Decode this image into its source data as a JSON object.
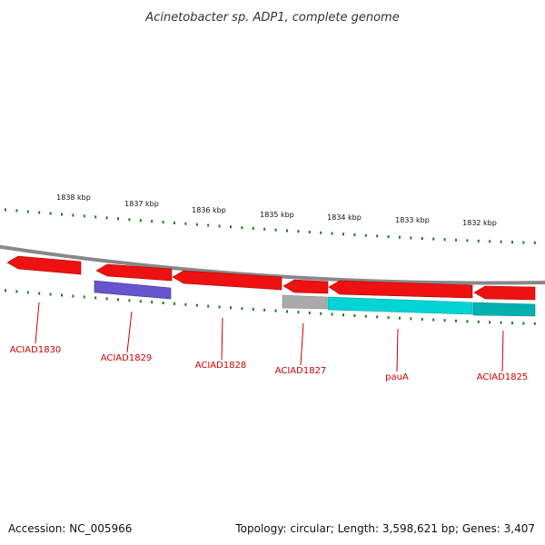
{
  "title": "Acinetobacter sp. ADP1, complete genome",
  "footer": {
    "accession": "Accession: NC_005966",
    "summary": "Topology: circular; Length: 3,598,621 bp; Genes: 3,407"
  },
  "scale": {
    "tick_labels": [
      "1838 kbp",
      "1837 kbp",
      "1836 kbp",
      "1835 kbp",
      "1834 kbp",
      "1833 kbp",
      "1832 kbp"
    ]
  },
  "genes": [
    {
      "name": "ACIAD1830",
      "color": "#ee1111"
    },
    {
      "name": "ACIAD1829",
      "color": "#ee1111"
    },
    {
      "name": "ACIAD1828",
      "color": "#ee1111"
    },
    {
      "name": "ACIAD1827",
      "color": "#ee1111"
    },
    {
      "name": "pauA",
      "color": "#ee1111"
    },
    {
      "name": "ACIAD1825",
      "color": "#ee1111"
    }
  ],
  "colors": {
    "backbone": "#888888",
    "tick": "#1f7a1f",
    "forward_feature": "#ee1111",
    "purple_feature": "#6655cc",
    "gray_feature": "#aaaaaa",
    "cyan_feature": "#00d4d4",
    "teal_feature": "#00b0b0",
    "label": "#cc0000"
  }
}
